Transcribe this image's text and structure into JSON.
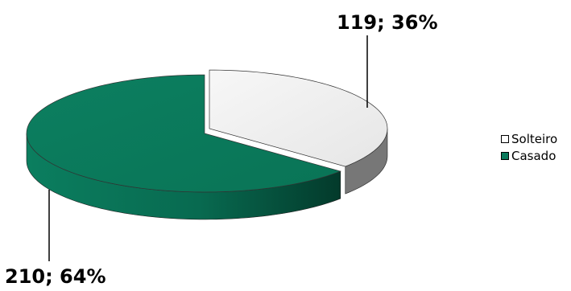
{
  "chart_data": {
    "type": "pie",
    "title": "",
    "slices": [
      {
        "label": "Solteiro",
        "value": 119,
        "percent": "36%",
        "data_label": "119; 36%",
        "color": "#EEEEEE",
        "side_color": "#777777"
      },
      {
        "label": "Casado",
        "value": 210,
        "percent": "64%",
        "data_label": "210; 64%",
        "color": "#0A7A5C",
        "side_color": "#054A38"
      }
    ],
    "legend_position": "right",
    "three_d": true,
    "exploded": true
  },
  "legend": {
    "items": [
      {
        "label": "Solteiro",
        "color": "#FFFFFF"
      },
      {
        "label": "Casado",
        "color": "#0A7A5C"
      }
    ]
  }
}
